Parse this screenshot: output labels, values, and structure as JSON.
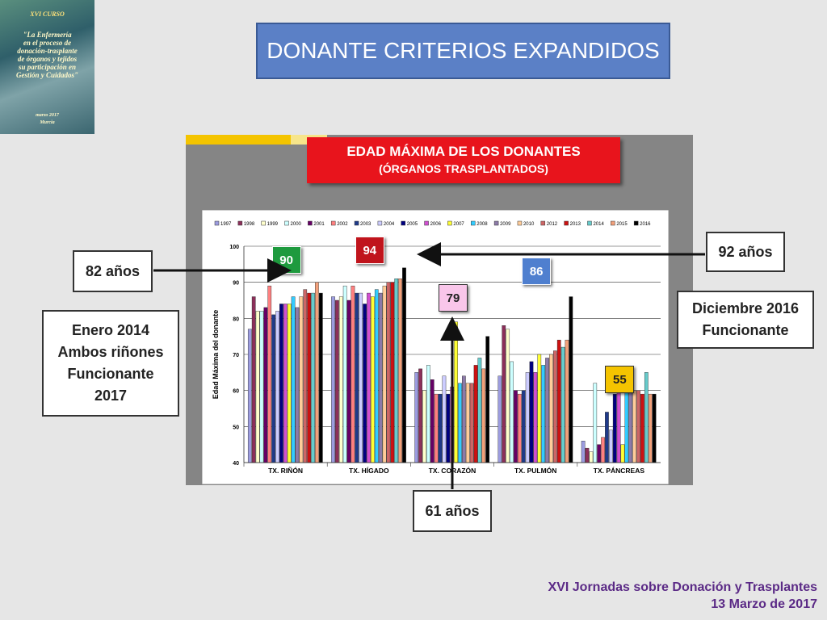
{
  "slide": {
    "title": "DONANTE CRITERIOS EXPANDIDOS",
    "cover": {
      "course": "XVI CURSO",
      "lines": [
        "\"La Enfermería",
        "en el proceso de",
        "donación-trasplante",
        "de órganos y tejidos",
        "su participación en",
        "Gestión y Cuidados\""
      ],
      "date": "marzo 2017",
      "place": "Murcia"
    },
    "footer": {
      "line1": "XVI Jornadas sobre Donación y Trasplantes",
      "line2": "13 Marzo de 2017"
    },
    "callouts": {
      "rinon_age": "82 años",
      "rinon_note": [
        "Enero 2014",
        "Ambos riñones",
        "Funcionante",
        "2017"
      ],
      "higado_age": "92 años",
      "pulmon_note": [
        "Diciembre 2016",
        "Funcionante"
      ],
      "corazon_age": "61 años"
    },
    "badges": [
      {
        "value": "90",
        "color": "#1e9a3e",
        "group": 0
      },
      {
        "value": "94",
        "color": "#c0141c",
        "group": 1
      },
      {
        "value": "79",
        "color": "#f9c6ea",
        "group": 2
      },
      {
        "value": "86",
        "color": "#4f7fcf",
        "group": 3
      },
      {
        "value": "55",
        "color": "#f5c400",
        "group": 4
      }
    ],
    "colors": {
      "arrow": "#111111",
      "footer": "#5b2a86"
    }
  },
  "chart_data": {
    "type": "bar",
    "title": "EDAD MÁXIMA DE LOS DONANTES",
    "subtitle": "(ÓRGANOS TRASPLANTADOS)",
    "ylabel": "Edad Máxima del donante",
    "ylim": [
      40,
      100
    ],
    "yticks": [
      40,
      50,
      60,
      70,
      80,
      90,
      100
    ],
    "grid": true,
    "legend": "top",
    "categories": [
      "TX. RIÑÓN",
      "TX. HÍGADO",
      "TX. CORAZÓN",
      "TX. PULMÓN",
      "TX. PÁNCREAS"
    ],
    "series": [
      {
        "name": "1997",
        "color": "#9c9ce0",
        "values": [
          77,
          86,
          65,
          64,
          46
        ]
      },
      {
        "name": "1998",
        "color": "#8c2f5a",
        "values": [
          86,
          85,
          66,
          78,
          44
        ]
      },
      {
        "name": "1999",
        "color": "#ffffcc",
        "values": [
          82,
          86,
          60,
          77,
          43
        ]
      },
      {
        "name": "2000",
        "color": "#ccffff",
        "values": [
          82,
          89,
          67,
          68,
          62
        ]
      },
      {
        "name": "2001",
        "color": "#660066",
        "values": [
          83,
          85,
          63,
          60,
          45
        ]
      },
      {
        "name": "2002",
        "color": "#ff8080",
        "values": [
          89,
          89,
          59,
          59,
          47
        ]
      },
      {
        "name": "2003",
        "color": "#1f3a8a",
        "values": [
          81,
          87,
          59,
          60,
          54
        ]
      },
      {
        "name": "2004",
        "color": "#ccccff",
        "values": [
          82,
          87,
          64,
          65,
          49
        ]
      },
      {
        "name": "2005",
        "color": "#000080",
        "values": [
          84,
          84,
          59,
          68,
          59
        ]
      },
      {
        "name": "2006",
        "color": "#d14fd1",
        "values": [
          84,
          87,
          61,
          65,
          61
        ]
      },
      {
        "name": "2007",
        "color": "#ffff33",
        "values": [
          84,
          86,
          79,
          70,
          45
        ]
      },
      {
        "name": "2008",
        "color": "#33ccff",
        "values": [
          86,
          88,
          62,
          67,
          60
        ]
      },
      {
        "name": "2009",
        "color": "#8c7aa8",
        "values": [
          83,
          87,
          64,
          69,
          62
        ]
      },
      {
        "name": "2010",
        "color": "#ffcc99",
        "values": [
          86,
          89,
          62,
          70,
          60
        ]
      },
      {
        "name": "2012",
        "color": "#cc6666",
        "values": [
          88,
          90,
          62,
          71,
          60
        ]
      },
      {
        "name": "2013",
        "color": "#cc1111",
        "values": [
          87,
          90,
          67,
          74,
          59
        ]
      },
      {
        "name": "2014",
        "color": "#66cccc",
        "values": [
          87,
          91,
          69,
          72,
          65
        ]
      },
      {
        "name": "2015",
        "color": "#f2a07a",
        "values": [
          90,
          91,
          66,
          74,
          59
        ]
      },
      {
        "name": "2016",
        "color": "#000000",
        "values": [
          87,
          94,
          75,
          86,
          59
        ]
      }
    ]
  }
}
